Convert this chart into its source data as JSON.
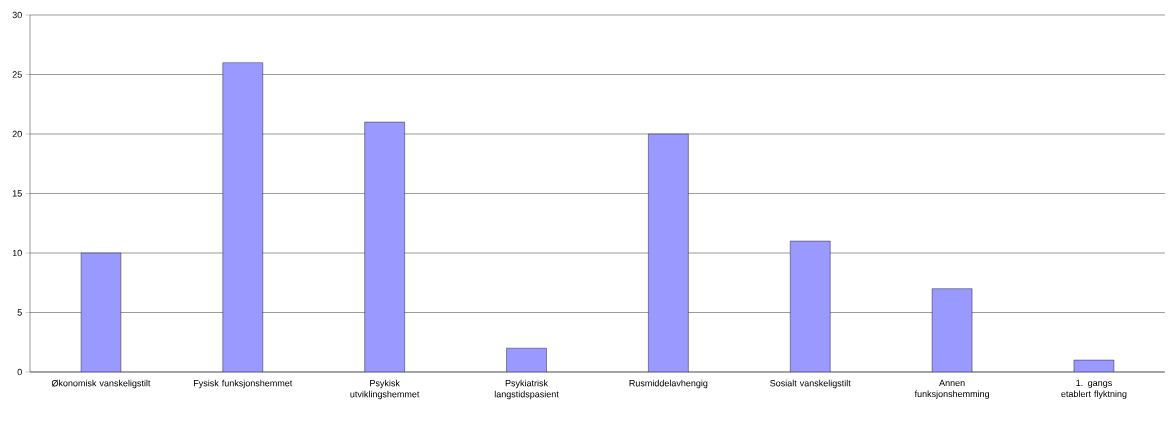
{
  "chart_data": {
    "type": "bar",
    "categories": [
      "Økonomisk vanskeligstilt",
      "Fysisk funksjonshemmet",
      "Psykisk utviklingshemmet",
      "Psykiatrisk langstidspasient",
      "Rusmiddelavhengig",
      "Sosialt vanskeligstilt",
      "Annen funksjonshemming",
      "1. gangs etablert flyktning"
    ],
    "values": [
      10,
      26,
      21,
      2,
      20,
      11,
      7,
      1
    ],
    "color": "#9999ff",
    "ylim": [
      0,
      30
    ],
    "yticks": [
      0,
      5,
      10,
      15,
      20,
      25,
      30
    ],
    "grid": "y"
  }
}
